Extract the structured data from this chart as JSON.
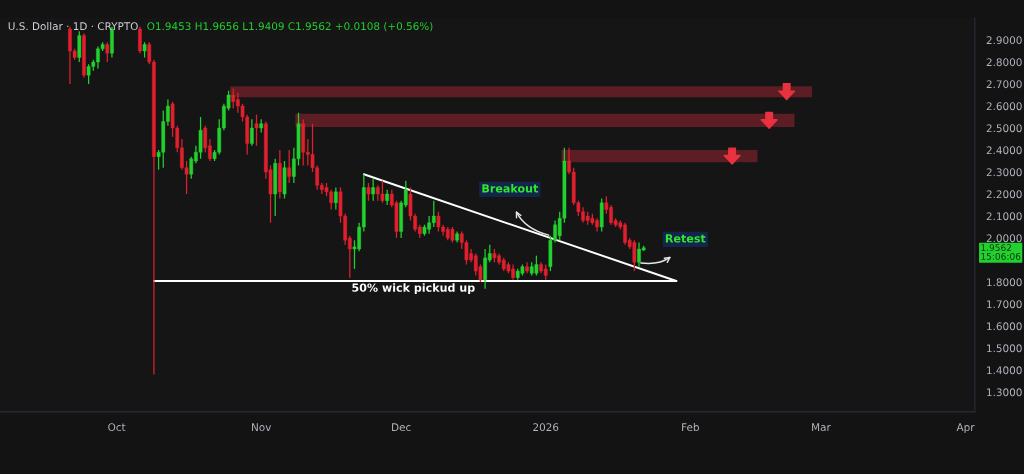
{
  "chart_data": {
    "type": "candlestick",
    "title": "U.S. Dollar · 1D · CRYPTO",
    "subtitle": "O1.9453 H1.9656 L1.9409 C1.9562 +0.0108 (+0.56%)",
    "xlim": [
      "2025-09-06",
      "2026-04-03"
    ],
    "xticks": [
      {
        "value": "2025-10-01",
        "label": "Oct"
      },
      {
        "value": "2025-11-01",
        "label": "Nov"
      },
      {
        "value": "2025-12-01",
        "label": "Dec"
      },
      {
        "value": "2026-01-01",
        "label": "2026"
      },
      {
        "value": "2026-02-01",
        "label": "Feb"
      },
      {
        "value": "2026-03-01",
        "label": "Mar"
      },
      {
        "value": "2026-04-01",
        "label": "Apr"
      }
    ],
    "ylim": [
      1.21,
      3.0
    ],
    "yticks": [
      {
        "value": 1.3,
        "label": "1.3000"
      },
      {
        "value": 1.4,
        "label": "1.4000"
      },
      {
        "value": 1.5,
        "label": "1.5000"
      },
      {
        "value": 1.6,
        "label": "1.6000"
      },
      {
        "value": 1.7,
        "label": "1.7000"
      },
      {
        "value": 1.8,
        "label": "1.8000"
      },
      {
        "value": 2.0,
        "label": "2.0000"
      },
      {
        "value": 2.1,
        "label": "2.1000"
      },
      {
        "value": 2.2,
        "label": "2.2000"
      },
      {
        "value": 2.3,
        "label": "2.3000"
      },
      {
        "value": 2.4,
        "label": "2.4000"
      },
      {
        "value": 2.5,
        "label": "2.5000"
      },
      {
        "value": 2.6,
        "label": "2.6000"
      },
      {
        "value": 2.7,
        "label": "2.7000"
      },
      {
        "value": 2.8,
        "label": "2.8000"
      },
      {
        "value": 2.9,
        "label": "2.9000"
      }
    ],
    "series": [
      {
        "color": "#22d12e",
        "x": [
          "2025-09-23",
          "2025-09-25",
          "2025-09-26",
          "2025-09-27",
          "2025-09-28",
          "2025-09-30",
          "2025-10-07",
          "2025-10-10",
          "2025-10-11",
          "2025-10-12",
          "2025-10-17",
          "2025-10-18",
          "2025-10-19",
          "2025-10-22",
          "2025-10-23",
          "2025-10-24",
          "2025-10-25",
          "2025-10-30",
          "2025-11-01",
          "2025-11-04",
          "2025-11-06",
          "2025-11-08",
          "2025-11-09",
          "2025-11-17",
          "2025-11-21",
          "2025-11-22",
          "2025-11-23",
          "2025-11-25",
          "2025-11-28",
          "2025-12-01",
          "2025-12-02",
          "2025-12-06",
          "2025-12-07",
          "2025-12-08",
          "2025-12-13",
          "2025-12-19",
          "2025-12-20",
          "2025-12-26",
          "2025-12-27",
          "2025-12-29",
          "2025-12-30",
          "2026-01-02",
          "2026-01-03",
          "2026-01-04",
          "2026-01-05",
          "2026-01-13",
          "2026-01-21",
          "2026-01-22"
        ],
        "ohlc": [
          [
            2.82,
            2.94,
            2.8,
            2.92
          ],
          [
            2.74,
            2.79,
            2.7,
            2.78
          ],
          [
            2.78,
            2.81,
            2.76,
            2.8
          ],
          [
            2.8,
            2.87,
            2.77,
            2.86
          ],
          [
            2.86,
            2.89,
            2.85,
            2.88
          ],
          [
            2.84,
            2.96,
            2.82,
            2.95
          ],
          [
            2.85,
            2.89,
            2.82,
            2.88
          ],
          [
            2.37,
            2.4,
            2.31,
            2.39
          ],
          [
            2.39,
            2.58,
            2.32,
            2.53
          ],
          [
            2.53,
            2.63,
            2.51,
            2.6
          ],
          [
            2.29,
            2.37,
            2.27,
            2.36
          ],
          [
            2.35,
            2.42,
            2.34,
            2.39
          ],
          [
            2.39,
            2.55,
            2.36,
            2.49
          ],
          [
            2.36,
            2.4,
            2.35,
            2.39
          ],
          [
            2.39,
            2.54,
            2.38,
            2.5
          ],
          [
            2.5,
            2.61,
            2.49,
            2.6
          ],
          [
            2.59,
            2.67,
            2.58,
            2.65
          ],
          [
            2.43,
            2.54,
            2.42,
            2.5
          ],
          [
            2.5,
            2.54,
            2.48,
            2.52
          ],
          [
            2.2,
            2.36,
            2.1,
            2.34
          ],
          [
            2.2,
            2.35,
            2.18,
            2.32
          ],
          [
            2.28,
            2.41,
            2.25,
            2.36
          ],
          [
            2.36,
            2.57,
            2.33,
            2.52
          ],
          [
            2.16,
            2.23,
            2.13,
            2.21
          ],
          [
            1.95,
            1.99,
            1.86,
            1.96
          ],
          [
            1.95,
            2.07,
            1.94,
            2.05
          ],
          [
            2.05,
            2.29,
            2.03,
            2.23
          ],
          [
            2.2,
            2.27,
            2.17,
            2.23
          ],
          [
            2.17,
            2.22,
            2.15,
            2.2
          ],
          [
            2.03,
            2.17,
            2.0,
            2.16
          ],
          [
            2.15,
            2.26,
            2.14,
            2.22
          ],
          [
            2.02,
            2.06,
            2.01,
            2.05
          ],
          [
            2.04,
            2.1,
            2.02,
            2.07
          ],
          [
            2.07,
            2.17,
            2.05,
            2.1
          ],
          [
            1.99,
            2.03,
            1.98,
            2.02
          ],
          [
            1.81,
            1.95,
            1.77,
            1.91
          ],
          [
            1.9,
            1.97,
            1.89,
            1.93
          ],
          [
            1.82,
            1.86,
            1.81,
            1.85
          ],
          [
            1.84,
            1.88,
            1.83,
            1.87
          ],
          [
            1.84,
            1.89,
            1.83,
            1.87
          ],
          [
            1.84,
            1.92,
            1.83,
            1.88
          ],
          [
            1.87,
            2.01,
            1.85,
            1.99
          ],
          [
            1.99,
            2.08,
            1.98,
            2.06
          ],
          [
            2.01,
            2.12,
            1.99,
            2.09
          ],
          [
            2.09,
            2.41,
            2.07,
            2.35
          ],
          [
            2.05,
            2.18,
            2.03,
            2.16
          ],
          [
            1.89,
            1.98,
            1.87,
            1.95
          ],
          [
            1.9453,
            1.9656,
            1.9409,
            1.9562
          ]
        ]
      },
      {
        "color": "#e0202e",
        "x": [
          "2025-09-21",
          "2025-09-22",
          "2025-09-24",
          "2025-09-29",
          "2025-10-06",
          "2025-10-08",
          "2025-10-09",
          "2025-10-13",
          "2025-10-14",
          "2025-10-15",
          "2025-10-16",
          "2025-10-20",
          "2025-10-21",
          "2025-10-26",
          "2025-10-27",
          "2025-10-28",
          "2025-10-29",
          "2025-10-31",
          "2025-11-02",
          "2025-11-03",
          "2025-11-05",
          "2025-11-07",
          "2025-11-10",
          "2025-11-11",
          "2025-11-12",
          "2025-11-13",
          "2025-11-14",
          "2025-11-15",
          "2025-11-16",
          "2025-11-18",
          "2025-11-19",
          "2025-11-20",
          "2025-11-24",
          "2025-11-26",
          "2025-11-27",
          "2025-11-29",
          "2025-11-30",
          "2025-12-03",
          "2025-12-04",
          "2025-12-05",
          "2025-12-09",
          "2025-12-10",
          "2025-12-11",
          "2025-12-12",
          "2025-12-14",
          "2025-12-15",
          "2025-12-16",
          "2025-12-17",
          "2025-12-18",
          "2025-12-21",
          "2025-12-22",
          "2025-12-23",
          "2025-12-24",
          "2025-12-25",
          "2025-12-28",
          "2025-12-31",
          "2026-01-01",
          "2026-01-06",
          "2026-01-07",
          "2026-01-08",
          "2026-01-09",
          "2026-01-10",
          "2026-01-11",
          "2026-01-12",
          "2026-01-14",
          "2026-01-15",
          "2026-01-16",
          "2026-01-17",
          "2026-01-18",
          "2026-01-19",
          "2026-01-20"
        ],
        "ohlc": [
          [
            2.95,
            2.96,
            2.7,
            2.85
          ],
          [
            2.85,
            2.86,
            2.81,
            2.82
          ],
          [
            2.92,
            2.93,
            2.73,
            2.74
          ],
          [
            2.88,
            2.89,
            2.8,
            2.84
          ],
          [
            2.95,
            2.96,
            2.84,
            2.85
          ],
          [
            2.88,
            2.89,
            2.79,
            2.8
          ],
          [
            2.8,
            2.81,
            1.38,
            2.37
          ],
          [
            2.61,
            2.62,
            2.46,
            2.5
          ],
          [
            2.5,
            2.51,
            2.39,
            2.41
          ],
          [
            2.41,
            2.45,
            2.31,
            2.32
          ],
          [
            2.32,
            2.35,
            2.2,
            2.29
          ],
          [
            2.5,
            2.51,
            2.39,
            2.41
          ],
          [
            2.42,
            2.45,
            2.35,
            2.36
          ],
          [
            2.65,
            2.68,
            2.59,
            2.62
          ],
          [
            2.63,
            2.66,
            2.57,
            2.6
          ],
          [
            2.6,
            2.61,
            2.53,
            2.55
          ],
          [
            2.55,
            2.56,
            2.38,
            2.43
          ],
          [
            2.52,
            2.56,
            2.42,
            2.5
          ],
          [
            2.52,
            2.53,
            2.27,
            2.3
          ],
          [
            2.31,
            2.33,
            2.07,
            2.2
          ],
          [
            2.34,
            2.4,
            2.18,
            2.21
          ],
          [
            2.32,
            2.4,
            2.25,
            2.28
          ],
          [
            2.52,
            2.54,
            2.33,
            2.39
          ],
          [
            2.39,
            2.45,
            2.33,
            2.38
          ],
          [
            2.38,
            2.52,
            2.3,
            2.32
          ],
          [
            2.32,
            2.33,
            2.22,
            2.24
          ],
          [
            2.24,
            2.25,
            2.2,
            2.22
          ],
          [
            2.23,
            2.25,
            2.19,
            2.21
          ],
          [
            2.21,
            2.22,
            2.13,
            2.16
          ],
          [
            2.21,
            2.23,
            2.07,
            2.1
          ],
          [
            2.1,
            2.11,
            1.97,
            1.99
          ],
          [
            2.0,
            2.01,
            1.82,
            1.95
          ],
          [
            2.23,
            2.25,
            2.17,
            2.2
          ],
          [
            2.23,
            2.24,
            2.17,
            2.2
          ],
          [
            2.2,
            2.26,
            2.16,
            2.17
          ],
          [
            2.2,
            2.22,
            2.14,
            2.15
          ],
          [
            2.16,
            2.17,
            2.0,
            2.03
          ],
          [
            2.2,
            2.23,
            2.08,
            2.1
          ],
          [
            2.1,
            2.11,
            2.03,
            2.04
          ],
          [
            2.05,
            2.06,
            2.0,
            2.02
          ],
          [
            2.1,
            2.12,
            2.03,
            2.05
          ],
          [
            2.05,
            2.06,
            2.01,
            2.03
          ],
          [
            2.04,
            2.05,
            1.99,
            2.0
          ],
          [
            2.04,
            2.05,
            1.98,
            1.99
          ],
          [
            2.02,
            2.03,
            1.95,
            1.98
          ],
          [
            1.98,
            1.99,
            1.88,
            1.9
          ],
          [
            1.93,
            1.95,
            1.89,
            1.9
          ],
          [
            1.92,
            1.93,
            1.83,
            1.85
          ],
          [
            1.87,
            1.88,
            1.8,
            1.81
          ],
          [
            1.93,
            1.95,
            1.89,
            1.91
          ],
          [
            1.92,
            1.93,
            1.88,
            1.89
          ],
          [
            1.9,
            1.91,
            1.85,
            1.86
          ],
          [
            1.88,
            1.89,
            1.84,
            1.85
          ],
          [
            1.86,
            1.88,
            1.81,
            1.82
          ],
          [
            1.87,
            1.89,
            1.84,
            1.85
          ],
          [
            1.88,
            1.89,
            1.84,
            1.85
          ],
          [
            1.86,
            1.88,
            1.81,
            1.83
          ],
          [
            2.35,
            2.41,
            2.29,
            2.3
          ],
          [
            2.3,
            2.32,
            2.15,
            2.16
          ],
          [
            2.16,
            2.17,
            2.1,
            2.12
          ],
          [
            2.12,
            2.14,
            2.07,
            2.08
          ],
          [
            2.1,
            2.12,
            2.06,
            2.08
          ],
          [
            2.09,
            2.11,
            2.06,
            2.07
          ],
          [
            2.08,
            2.09,
            2.03,
            2.05
          ],
          [
            2.16,
            2.19,
            2.11,
            2.13
          ],
          [
            2.14,
            2.15,
            2.06,
            2.07
          ],
          [
            2.08,
            2.09,
            2.05,
            2.06
          ],
          [
            2.07,
            2.08,
            2.04,
            2.05
          ],
          [
            2.06,
            2.07,
            1.97,
            1.98
          ],
          [
            1.99,
            2.0,
            1.95,
            1.96
          ],
          [
            1.98,
            1.99,
            1.85,
            1.89
          ]
        ]
      },
      {
        "type": "line",
        "color": "#ffffff",
        "line_style": "solid",
        "x": [
          "2025-11-23",
          "2026-01-29"
        ],
        "values": [
          2.29,
          1.805
        ]
      },
      {
        "type": "line",
        "color": "#ffffff",
        "line_style": "solid",
        "x": [
          "2025-10-09",
          "2026-01-29"
        ],
        "values": [
          1.805,
          1.805
        ]
      }
    ],
    "bands": [
      {
        "axis": "y",
        "from": 2.64,
        "to": 2.69,
        "color": "#5c1d24"
      },
      {
        "axis": "y",
        "from": 2.505,
        "to": 2.565,
        "color": "#5c1d24"
      },
      {
        "axis": "y",
        "from": 2.345,
        "to": 2.4,
        "color": "#5c1d24"
      }
    ],
    "annotations": [
      "Breakout",
      "Retest",
      "50% wick pickud up",
      "1.9562\n15:06:06"
    ]
  }
}
